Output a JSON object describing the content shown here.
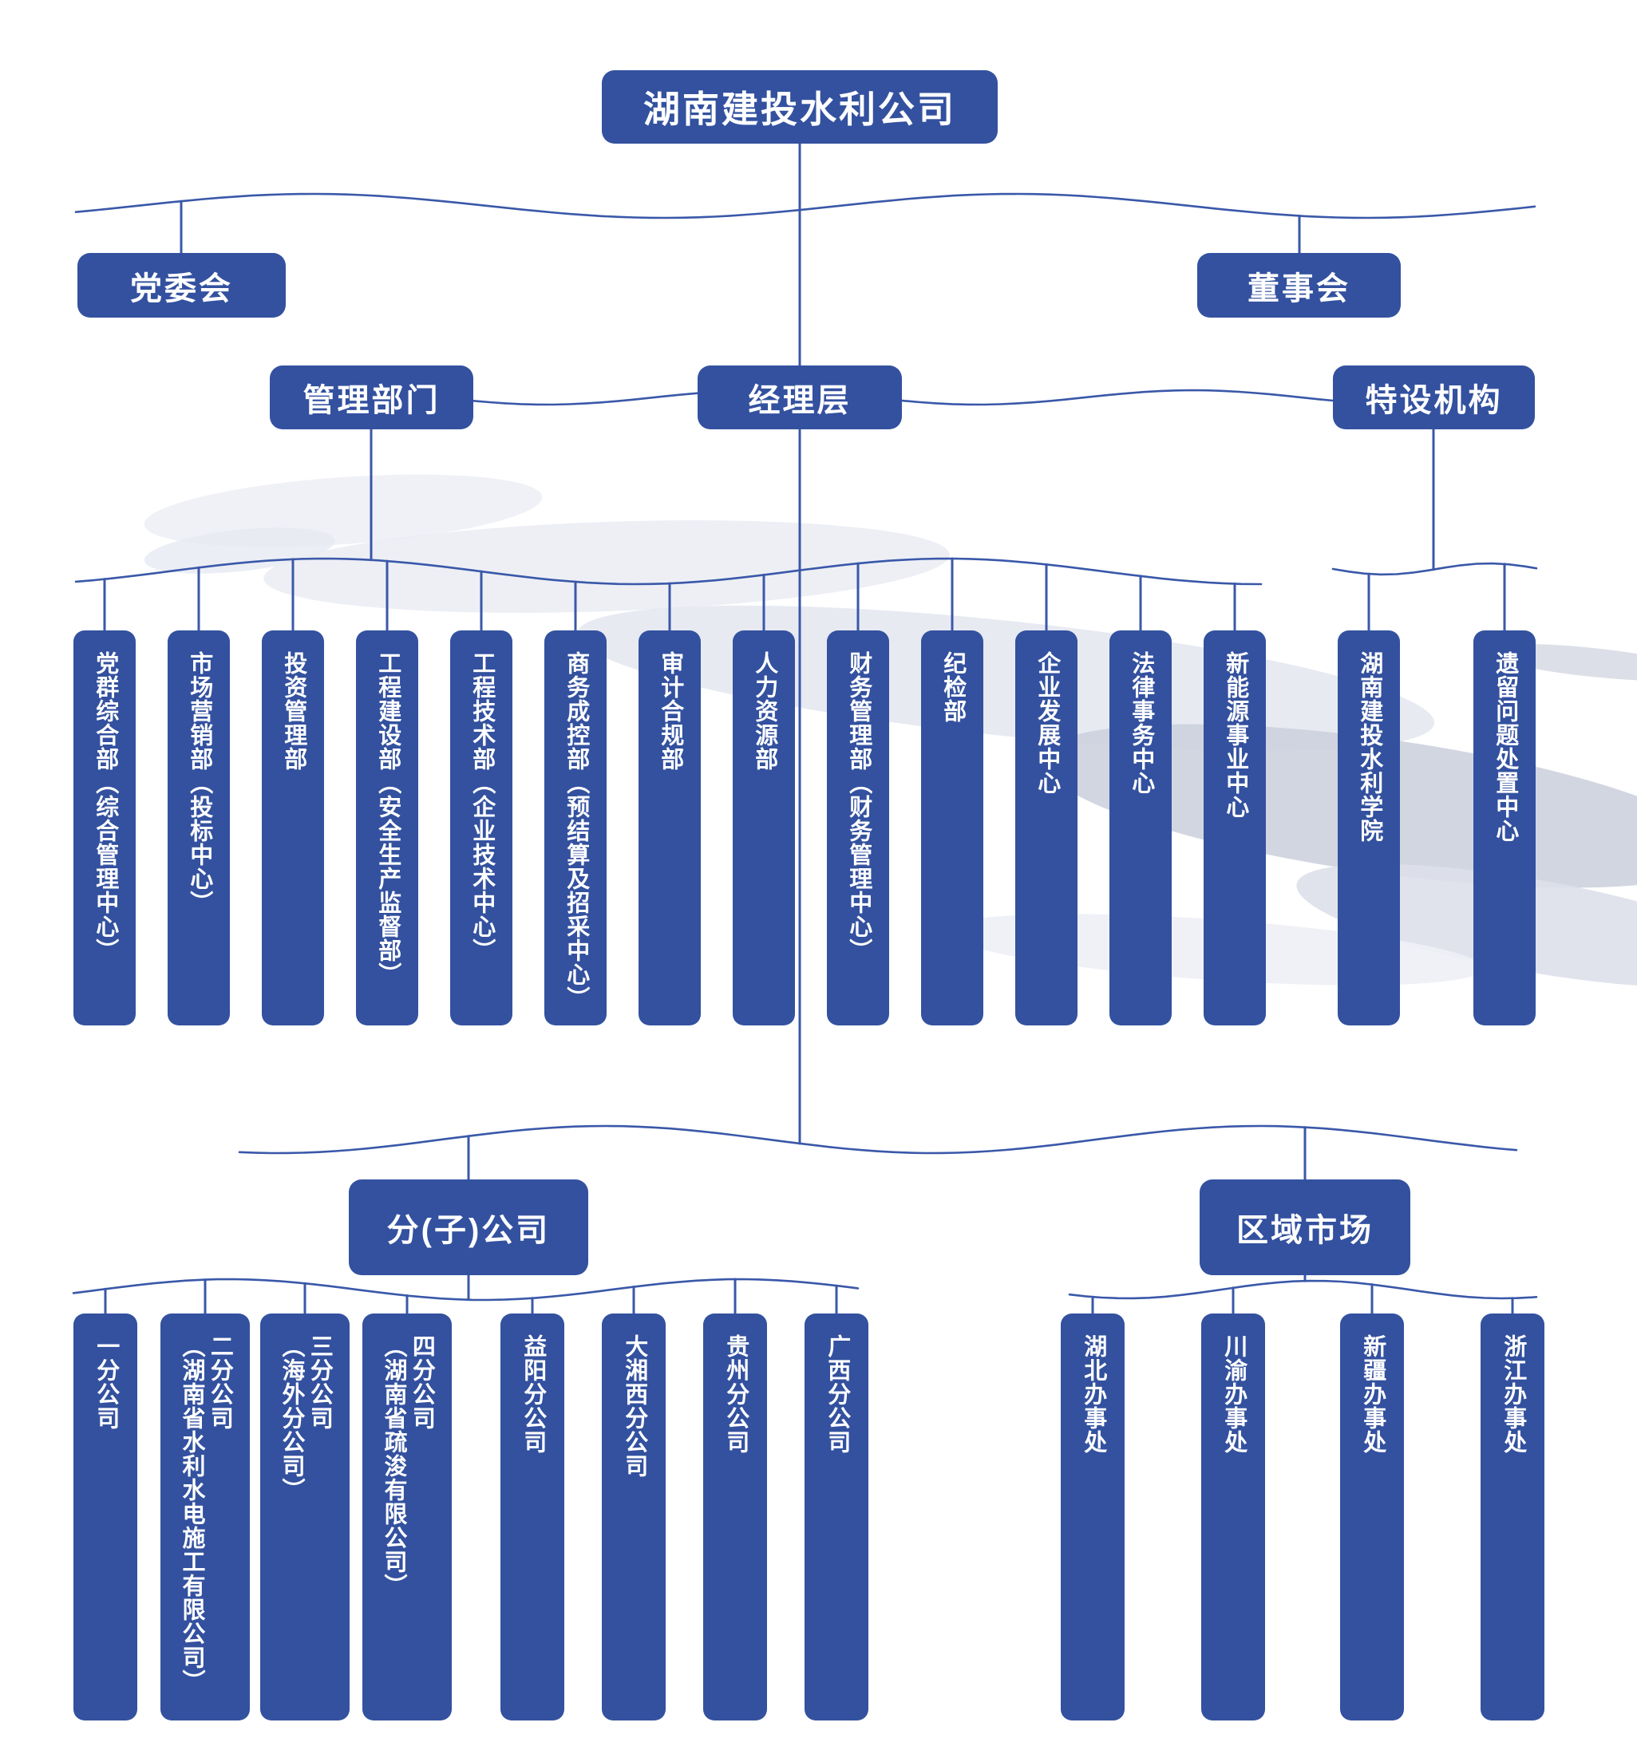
{
  "chart": {
    "root": "湖南建投水利公司",
    "party_committee": "党委会",
    "board": "董事会",
    "management_depts": "管理部门",
    "executive_layer": "经理层",
    "special_agencies": "特设机构",
    "subsidiaries_header": "分(子)公司",
    "regional_markets_header": "区域市场"
  },
  "departments": [
    "党群综合部（综合管理中心）",
    "市场营销部（投标中心）",
    "投资管理部",
    "工程建设部（安全生产监督部）",
    "工程技术部（企业技术中心）",
    "商务成控部（预结算及招采中心）",
    "审计合规部",
    "人力资源部",
    "财务管理部（财务管理中心）",
    "纪检部",
    "企业发展中心",
    "法律事务中心",
    "新能源事业中心",
    "湖南建投水利学院",
    "遗留问题处置中心"
  ],
  "branch_companies": [
    "一分公司",
    "二分公司\n（湖南省水利水电施工有限公司）",
    "三分公司\n（海外分公司）",
    "四分公司\n（湖南省疏浚有限公司）",
    "益阳分公司",
    "大湘西分公司",
    "贵州分公司",
    "广西分公司"
  ],
  "regional_offices": [
    "湖北办事处",
    "川渝办事处",
    "新疆办事处",
    "浙江办事处"
  ],
  "colors": {
    "box_blue": "#33519F",
    "line_blue": "#3A58A9",
    "text_white": "#FFFFFF",
    "watermark_gray": "#D3D7E2"
  }
}
